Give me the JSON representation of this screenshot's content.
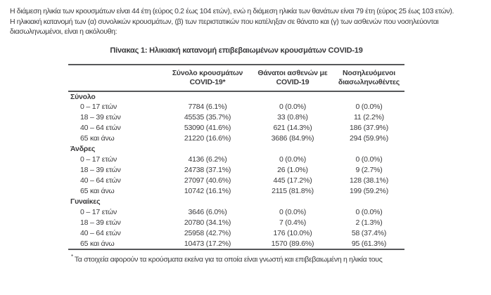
{
  "intro": {
    "line1": "Η διάμεση ηλικία των κρουσμάτων είναι 44 έτη (εύρος 0.2 έως 104 ετών), ενώ η διάμεση ηλικία των θανάτων είναι 79 έτη (εύρος 25 έως 103 ετών).",
    "line2": "Η ηλικιακή κατανομή των (α) συνολικών κρουσμάτων, (β) των περιστατικών που κατέληξαν σε θάνατο και (γ) των ασθενών που νοσηλεύονται",
    "line3": "διασωληνωμένοι, είναι η ακόλουθη:"
  },
  "table": {
    "title": "Πίνακας 1: Ηλικιακή κατανομή επιβεβαιωμένων κρουσμάτων COVID-19",
    "columns": [
      {
        "line1": "Σύνολο κρουσμάτων",
        "line2": "COVID-19*"
      },
      {
        "line1": "Θάνατοι ασθενών με",
        "line2": "COVID-19"
      },
      {
        "line1": "Νοσηλευόμενοι",
        "line2": "διασωληνωθέντες"
      }
    ],
    "sections": [
      {
        "label": "Σύνολο",
        "rows": [
          {
            "label": "0 – 17 ετών",
            "cases": "7784 (6.1%)",
            "deaths": "0 (0.0%)",
            "intubated": "0 (0.0%)"
          },
          {
            "label": "18 – 39 ετών",
            "cases": "45535 (35.7%)",
            "deaths": "33 (0.8%)",
            "intubated": "11 (2.2%)"
          },
          {
            "label": "40 – 64 ετών",
            "cases": "53090 (41.6%)",
            "deaths": "621 (14.3%)",
            "intubated": "186 (37.9%)"
          },
          {
            "label": "65 και άνω",
            "cases": "21220 (16.6%)",
            "deaths": "3686 (84.9%)",
            "intubated": "294 (59.9%)"
          }
        ]
      },
      {
        "label": "Άνδρες",
        "rows": [
          {
            "label": "0 – 17 ετών",
            "cases": "4136 (6.2%)",
            "deaths": "0 (0.0%)",
            "intubated": "0 (0.0%)"
          },
          {
            "label": "18 – 39 ετών",
            "cases": "24738 (37.1%)",
            "deaths": "26 (1.0%)",
            "intubated": "9 (2.7%)"
          },
          {
            "label": "40 – 64 ετών",
            "cases": "27097 (40.6%)",
            "deaths": "445 (17.2%)",
            "intubated": "128 (38.1%)"
          },
          {
            "label": "65 και άνω",
            "cases": "10742 (16.1%)",
            "deaths": "2115 (81.8%)",
            "intubated": "199 (59.2%)"
          }
        ]
      },
      {
        "label": "Γυναίκες",
        "rows": [
          {
            "label": "0 – 17 ετών",
            "cases": "3646 (6.0%)",
            "deaths": "0 (0.0%)",
            "intubated": "0 (0.0%)"
          },
          {
            "label": "18 – 39 ετών",
            "cases": "20780 (34.1%)",
            "deaths": "7 (0.4%)",
            "intubated": "2 (1.3%)"
          },
          {
            "label": "40 – 64 ετών",
            "cases": "25958 (42.7%)",
            "deaths": "176 (10.0%)",
            "intubated": "58 (37.4%)"
          },
          {
            "label": "65 και άνω",
            "cases": "10473 (17.2%)",
            "deaths": "1570 (89.6%)",
            "intubated": "95 (61.3%)"
          }
        ]
      }
    ],
    "footnote_marker": "*",
    "footnote": "Τα στοιχεία αφορούν τα κρούσματα εκείνα για τα οποία είναι γνωστή και επιβεβαιωμένη η ηλικία τους"
  },
  "colors": {
    "text": "#3a3a3c",
    "border": "#57585a"
  }
}
